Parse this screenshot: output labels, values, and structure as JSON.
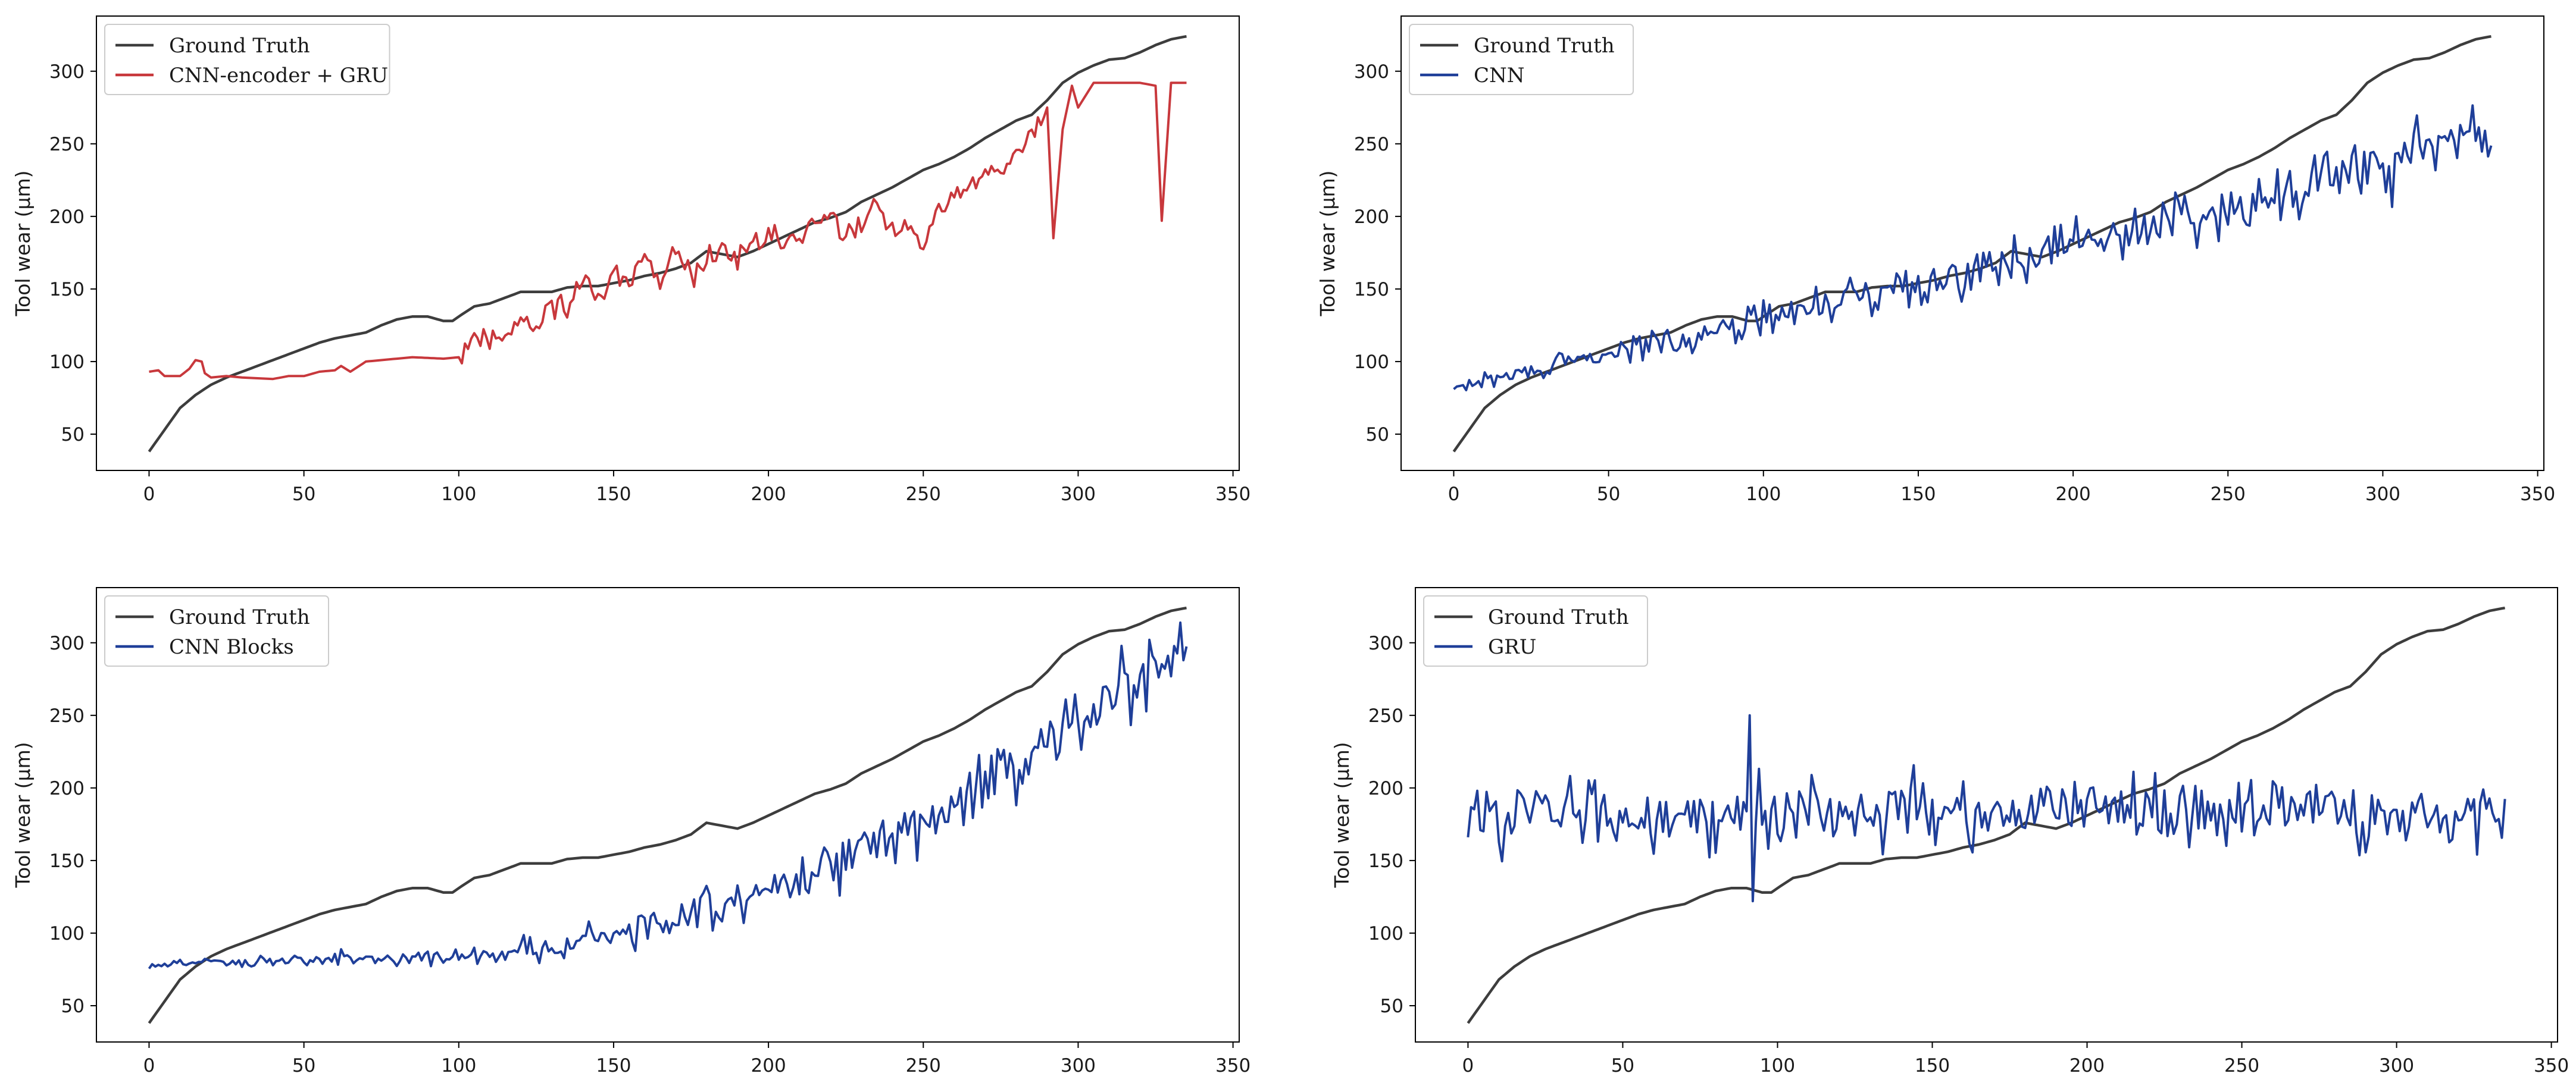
{
  "chart_data": [
    {
      "type": "line",
      "panel": "top-left",
      "title": "",
      "xlabel": "",
      "ylabel": "Tool wear (µm)",
      "xlim": [
        -17,
        352
      ],
      "ylim": [
        25,
        338
      ],
      "xticks": [
        0,
        50,
        100,
        150,
        200,
        250,
        300,
        350
      ],
      "yticks": [
        50,
        100,
        150,
        200,
        250,
        300
      ],
      "legend_position": "top-left",
      "series": [
        {
          "name": "Ground Truth",
          "color": "#3d3d3d",
          "kind": "truth"
        },
        {
          "name": "CNN-encoder + GRU",
          "color": "#c8383c",
          "kind": "encgru"
        }
      ]
    },
    {
      "type": "line",
      "panel": "top-right",
      "title": "",
      "xlabel": "",
      "ylabel": "Tool wear (µm)",
      "xlim": [
        -17,
        352
      ],
      "ylim": [
        25,
        338
      ],
      "xticks": [
        0,
        50,
        100,
        150,
        200,
        250,
        300,
        350
      ],
      "yticks": [
        50,
        100,
        150,
        200,
        250,
        300
      ],
      "legend_position": "top-left",
      "series": [
        {
          "name": "Ground Truth",
          "color": "#3d3d3d",
          "kind": "truth"
        },
        {
          "name": "CNN",
          "color": "#1f3f99",
          "kind": "cnn"
        }
      ]
    },
    {
      "type": "line",
      "panel": "bottom-left",
      "title": "",
      "xlabel": "",
      "ylabel": "Tool wear (µm)",
      "xlim": [
        -17,
        352
      ],
      "ylim": [
        25,
        338
      ],
      "xticks": [
        0,
        50,
        100,
        150,
        200,
        250,
        300,
        350
      ],
      "yticks": [
        50,
        100,
        150,
        200,
        250,
        300
      ],
      "legend_position": "top-left",
      "series": [
        {
          "name": "Ground Truth",
          "color": "#3d3d3d",
          "kind": "truth"
        },
        {
          "name": "CNN Blocks",
          "color": "#1f3f99",
          "kind": "cnnblocks"
        }
      ]
    },
    {
      "type": "line",
      "panel": "bottom-right",
      "title": "",
      "xlabel": "",
      "ylabel": "Tool wear (µm)",
      "xlim": [
        -17,
        352
      ],
      "ylim": [
        25,
        338
      ],
      "xticks": [
        0,
        50,
        100,
        150,
        200,
        250,
        300,
        350
      ],
      "yticks": [
        50,
        100,
        150,
        200,
        250,
        300
      ],
      "legend_position": "top-left",
      "series": [
        {
          "name": "Ground Truth",
          "color": "#3d3d3d",
          "kind": "truth"
        },
        {
          "name": "GRU",
          "color": "#1f3f99",
          "kind": "gru"
        }
      ]
    }
  ],
  "reference_points": {
    "truth": [
      [
        0,
        38
      ],
      [
        5,
        53
      ],
      [
        10,
        68
      ],
      [
        15,
        77
      ],
      [
        20,
        84
      ],
      [
        25,
        89
      ],
      [
        30,
        93
      ],
      [
        35,
        97
      ],
      [
        40,
        101
      ],
      [
        45,
        105
      ],
      [
        50,
        109
      ],
      [
        55,
        113
      ],
      [
        60,
        116
      ],
      [
        65,
        118
      ],
      [
        70,
        120
      ],
      [
        75,
        125
      ],
      [
        80,
        129
      ],
      [
        85,
        131
      ],
      [
        90,
        131
      ],
      [
        95,
        128
      ],
      [
        98,
        128
      ],
      [
        100,
        131
      ],
      [
        105,
        138
      ],
      [
        110,
        140
      ],
      [
        115,
        144
      ],
      [
        120,
        148
      ],
      [
        125,
        148
      ],
      [
        130,
        148
      ],
      [
        135,
        151
      ],
      [
        140,
        152
      ],
      [
        145,
        152
      ],
      [
        150,
        154
      ],
      [
        155,
        156
      ],
      [
        160,
        159
      ],
      [
        165,
        161
      ],
      [
        170,
        164
      ],
      [
        175,
        168
      ],
      [
        180,
        176
      ],
      [
        185,
        174
      ],
      [
        190,
        172
      ],
      [
        195,
        176
      ],
      [
        200,
        181
      ],
      [
        205,
        186
      ],
      [
        210,
        191
      ],
      [
        215,
        196
      ],
      [
        220,
        199
      ],
      [
        225,
        203
      ],
      [
        230,
        210
      ],
      [
        235,
        215
      ],
      [
        240,
        220
      ],
      [
        245,
        226
      ],
      [
        250,
        232
      ],
      [
        255,
        236
      ],
      [
        260,
        241
      ],
      [
        265,
        247
      ],
      [
        270,
        254
      ],
      [
        275,
        260
      ],
      [
        280,
        266
      ],
      [
        285,
        270
      ],
      [
        290,
        280
      ],
      [
        295,
        292
      ],
      [
        300,
        299
      ],
      [
        305,
        304
      ],
      [
        310,
        308
      ],
      [
        315,
        309
      ],
      [
        320,
        313
      ],
      [
        325,
        318
      ],
      [
        330,
        322
      ],
      [
        335,
        324
      ]
    ],
    "encgru": [
      [
        0,
        93
      ],
      [
        3,
        94
      ],
      [
        5,
        90
      ],
      [
        10,
        90
      ],
      [
        13,
        95
      ],
      [
        15,
        101
      ],
      [
        17,
        100
      ],
      [
        18,
        92
      ],
      [
        20,
        89
      ],
      [
        25,
        90
      ],
      [
        30,
        89
      ],
      [
        40,
        88
      ],
      [
        45,
        90
      ],
      [
        50,
        90
      ],
      [
        55,
        93
      ],
      [
        60,
        94
      ],
      [
        62,
        97
      ],
      [
        65,
        93
      ],
      [
        70,
        100
      ],
      [
        75,
        101
      ],
      [
        85,
        103
      ],
      [
        95,
        102
      ],
      [
        100,
        103
      ],
      [
        105,
        120
      ],
      [
        110,
        114
      ],
      [
        115,
        120
      ],
      [
        120,
        132
      ],
      [
        125,
        119
      ],
      [
        130,
        144
      ],
      [
        135,
        135
      ],
      [
        140,
        157
      ],
      [
        145,
        144
      ],
      [
        150,
        165
      ],
      [
        155,
        150
      ],
      [
        160,
        174
      ],
      [
        165,
        152
      ],
      [
        170,
        175
      ],
      [
        175,
        157
      ],
      [
        180,
        170
      ],
      [
        185,
        179
      ],
      [
        190,
        168
      ],
      [
        195,
        181
      ],
      [
        200,
        184
      ],
      [
        205,
        185
      ],
      [
        210,
        190
      ],
      [
        215,
        193
      ],
      [
        220,
        200
      ],
      [
        225,
        186
      ],
      [
        230,
        193
      ],
      [
        235,
        208
      ],
      [
        240,
        186
      ],
      [
        245,
        190
      ],
      [
        250,
        180
      ],
      [
        255,
        205
      ],
      [
        260,
        210
      ],
      [
        265,
        222
      ],
      [
        270,
        228
      ],
      [
        275,
        230
      ],
      [
        280,
        243
      ],
      [
        285,
        255
      ],
      [
        290,
        275
      ],
      [
        292,
        185
      ],
      [
        295,
        260
      ],
      [
        298,
        290
      ],
      [
        300,
        275
      ],
      [
        305,
        292
      ],
      [
        320,
        292
      ],
      [
        325,
        290
      ],
      [
        327,
        197
      ],
      [
        330,
        292
      ],
      [
        335,
        292
      ]
    ]
  }
}
